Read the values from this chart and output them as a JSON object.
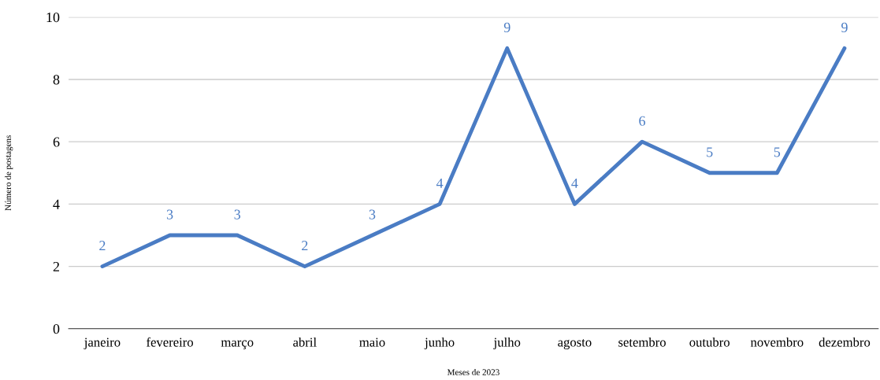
{
  "chart_data": {
    "type": "line",
    "xlabel": "Meses de 2023",
    "ylabel": "Número de postagens",
    "categories": [
      "janeiro",
      "fevereiro",
      "março",
      "abril",
      "maio",
      "junho",
      "julho",
      "agosto",
      "setembro",
      "outubro",
      "novembro",
      "dezembro"
    ],
    "series": [
      {
        "color": "#4a7cc4",
        "values": [
          2,
          3,
          3,
          2,
          3,
          4,
          9,
          4,
          6,
          5,
          5,
          9
        ]
      }
    ],
    "ylim": [
      0,
      10
    ],
    "yticks": [
      0,
      2,
      4,
      6,
      8,
      10
    ],
    "grid": "y",
    "data_labels": true,
    "marker": "none",
    "line_style": "solid"
  }
}
